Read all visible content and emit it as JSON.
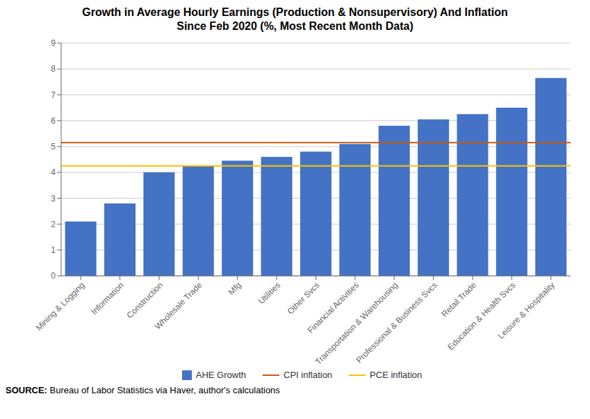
{
  "chart_data": {
    "type": "bar",
    "title": "Growth in Average Hourly Earnings (Production & Nonsupervisory) And Inflation\nSince Feb 2020 (%, Most Recent Month Data)",
    "categories": [
      "Mining & Logging",
      "Information",
      "Construction",
      "Wholesale Trade",
      "Mfg",
      "Utilities",
      "Other Svcs",
      "Financial Activities",
      "Transportation & Warehousing",
      "Professional & Business Svcs",
      "Retail Trade",
      "Education & Health Svcs",
      "Leisure & Hospitality"
    ],
    "series": [
      {
        "name": "AHE Growth",
        "color": "#4472C4",
        "values": [
          2.1,
          2.8,
          4.0,
          4.25,
          4.45,
          4.6,
          4.8,
          5.1,
          5.8,
          6.05,
          6.25,
          6.5,
          7.65
        ]
      }
    ],
    "reference_lines": [
      {
        "name": "CPI inflation",
        "color": "#C55A11",
        "value": 5.15
      },
      {
        "name": "PCE inflation",
        "color": "#FFC000",
        "value": 4.25
      }
    ],
    "ylim": [
      0,
      9
    ],
    "yticks": [
      0,
      1,
      2,
      3,
      4,
      5,
      6,
      7,
      8,
      9
    ],
    "grid": true,
    "legend": "bottom",
    "source_label": "SOURCE:",
    "source": "Bureau of Labor Statistics via Haver, author's calculations"
  }
}
